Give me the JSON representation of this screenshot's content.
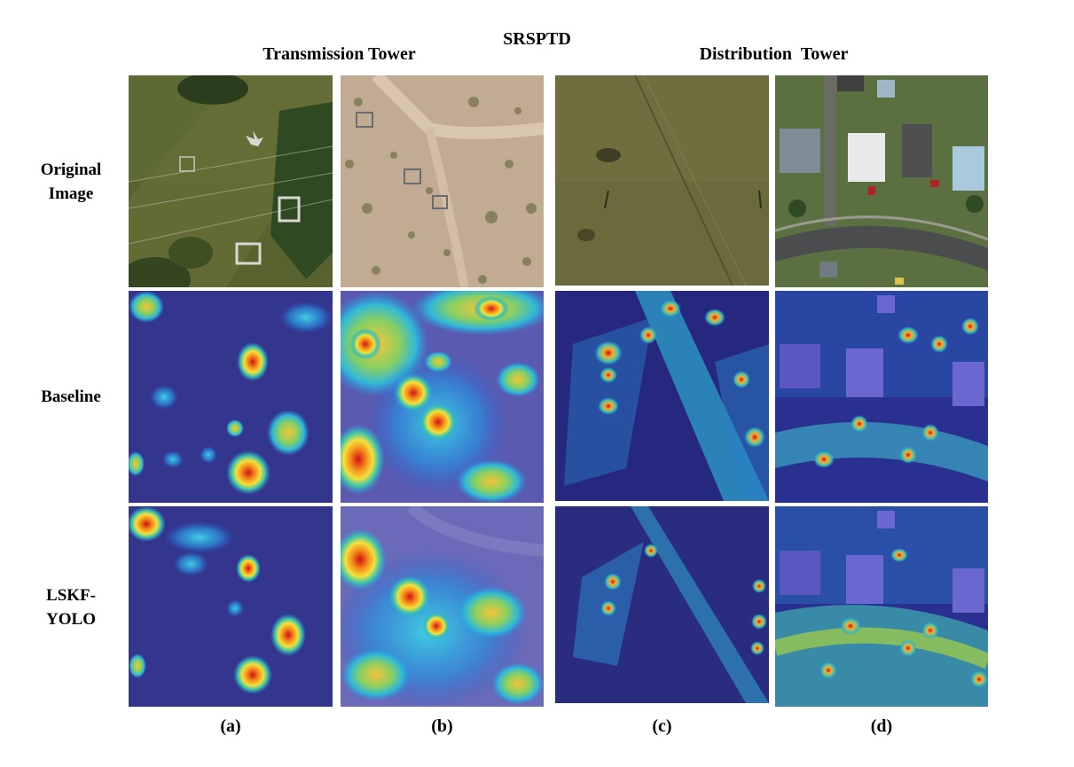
{
  "figure": {
    "dataset_title": "SRSPTD",
    "groups": [
      "Transmission Tower",
      "Distribution  Tower"
    ],
    "row_labels": [
      "Original\nImage",
      "Baseline",
      "LSKF-\nYOLO"
    ],
    "column_labels": [
      "(a)",
      "(b)",
      "(c)",
      "(d)"
    ]
  }
}
